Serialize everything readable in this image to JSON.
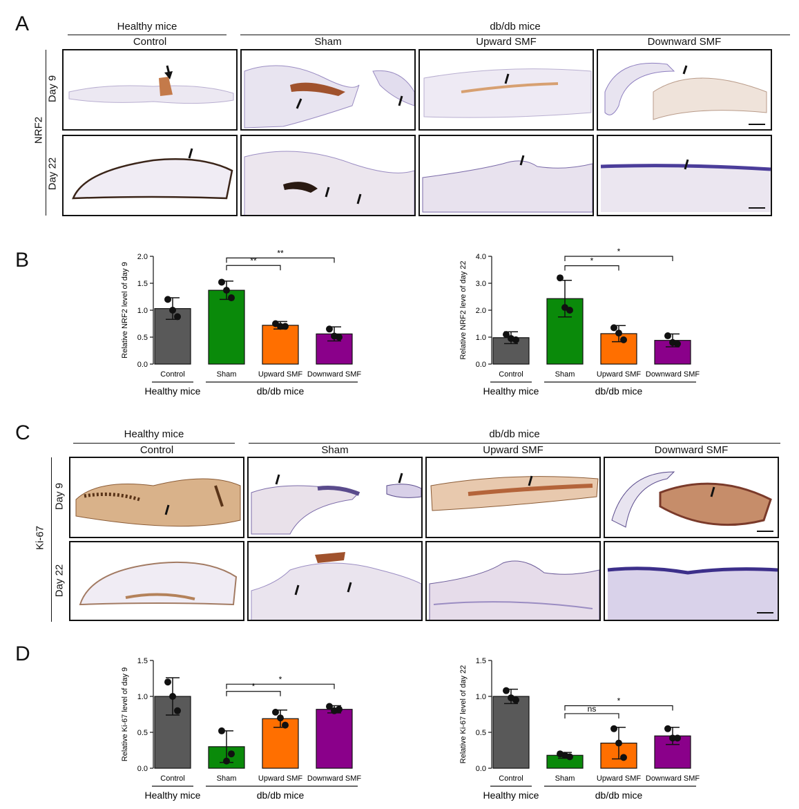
{
  "panels": {
    "A": {
      "letter": "A",
      "marker": "NRF2",
      "healthy_header": "Healthy mice",
      "db_header": "db/db mice",
      "columns": [
        "Control",
        "Sham",
        "Upward SMF",
        "Downward SMF"
      ],
      "rows": [
        "Day 9",
        "Day 22"
      ]
    },
    "B": {
      "letter": "B"
    },
    "C": {
      "letter": "C",
      "marker": "Ki-67",
      "healthy_header": "Healthy mice",
      "db_header": "db/db mice",
      "columns": [
        "Control",
        "Sham",
        "Upward SMF",
        "Downward SMF"
      ],
      "rows": [
        "Day 9",
        "Day 22"
      ]
    },
    "D": {
      "letter": "D"
    }
  },
  "colors": {
    "control": "#595959",
    "sham": "#0a8a0a",
    "upward": "#ff6f00",
    "downward": "#8a008a"
  },
  "chart_data": [
    {
      "id": "B1",
      "type": "bar",
      "ylabel": "Relative NRF2 level of day 9",
      "categories": [
        "Control",
        "Sham",
        "Upward SMF",
        "Downward SMF"
      ],
      "group_labels": [
        "Healthy mice",
        "db/db mice"
      ],
      "yticks": [
        "0.0",
        "0.5",
        "1.0",
        "1.5",
        "2.0"
      ],
      "ylim": [
        0,
        2.0
      ],
      "values": [
        1.03,
        1.37,
        0.72,
        0.56
      ],
      "err": [
        0.2,
        0.17,
        0.07,
        0.13
      ],
      "points": [
        [
          1.2,
          0.88,
          1.0
        ],
        [
          1.52,
          1.23,
          1.37
        ],
        [
          0.75,
          0.7,
          0.7
        ],
        [
          0.65,
          0.5,
          0.52
        ]
      ],
      "sig": [
        {
          "from": 1,
          "to": 2,
          "label": "**",
          "level": 1.83
        },
        {
          "from": 1,
          "to": 3,
          "label": "**",
          "level": 1.97
        }
      ]
    },
    {
      "id": "B2",
      "type": "bar",
      "ylabel": "Relative NRF2 leve of day 22",
      "categories": [
        "Control",
        "Sham",
        "Upward SMF",
        "Downward SMF"
      ],
      "group_labels": [
        "Healthy mice",
        "db/db mice"
      ],
      "yticks": [
        "0.0",
        "1.0",
        "2.0",
        "3.0",
        "4.0"
      ],
      "ylim": [
        0,
        4.0
      ],
      "values": [
        0.98,
        2.43,
        1.13,
        0.88
      ],
      "err": [
        0.22,
        0.68,
        0.3,
        0.24
      ],
      "points": [
        [
          1.1,
          0.9,
          0.95
        ],
        [
          3.2,
          2.0,
          2.1
        ],
        [
          1.35,
          0.9,
          1.15
        ],
        [
          1.05,
          0.75,
          0.8
        ]
      ],
      "sig": [
        {
          "from": 1,
          "to": 2,
          "label": "*",
          "level": 3.65
        },
        {
          "from": 1,
          "to": 3,
          "label": "*",
          "level": 4.0
        }
      ]
    },
    {
      "id": "D1",
      "type": "bar",
      "ylabel": "Relative Ki-67 level of day 9",
      "categories": [
        "Control",
        "Sham",
        "Upward SMF",
        "Downward SMF"
      ],
      "group_labels": [
        "Healthy mice",
        "db/db mice"
      ],
      "yticks": [
        "0.0",
        "0.5",
        "1.0",
        "1.5"
      ],
      "ylim": [
        0,
        1.5
      ],
      "values": [
        1.0,
        0.3,
        0.69,
        0.82
      ],
      "err": [
        0.26,
        0.22,
        0.12,
        0.05
      ],
      "points": [
        [
          1.2,
          0.8,
          1.0
        ],
        [
          0.52,
          0.2,
          0.1
        ],
        [
          0.78,
          0.6,
          0.7
        ],
        [
          0.86,
          0.82,
          0.8
        ]
      ],
      "sig": [
        {
          "from": 1,
          "to": 2,
          "label": "*",
          "level": 1.07
        },
        {
          "from": 1,
          "to": 3,
          "label": "*",
          "level": 1.17
        }
      ]
    },
    {
      "id": "D2",
      "type": "bar",
      "ylabel": "Relative Ki-67 level of day 22",
      "categories": [
        "Control",
        "Sham",
        "Upward SMF",
        "Downward SMF"
      ],
      "group_labels": [
        "Healthy mice",
        "db/db mice"
      ],
      "yticks": [
        "0.0",
        "0.5",
        "1.0",
        "1.5"
      ],
      "ylim": [
        0,
        1.5
      ],
      "values": [
        1.0,
        0.18,
        0.35,
        0.45
      ],
      "err": [
        0.1,
        0.04,
        0.22,
        0.12
      ],
      "points": [
        [
          1.08,
          0.95,
          0.98
        ],
        [
          0.2,
          0.16,
          0.18
        ],
        [
          0.55,
          0.15,
          0.35
        ],
        [
          0.55,
          0.42,
          0.42
        ]
      ],
      "sig": [
        {
          "from": 1,
          "to": 2,
          "label": "ns",
          "level": 0.76
        },
        {
          "from": 1,
          "to": 3,
          "label": "*",
          "level": 0.87
        }
      ]
    }
  ]
}
